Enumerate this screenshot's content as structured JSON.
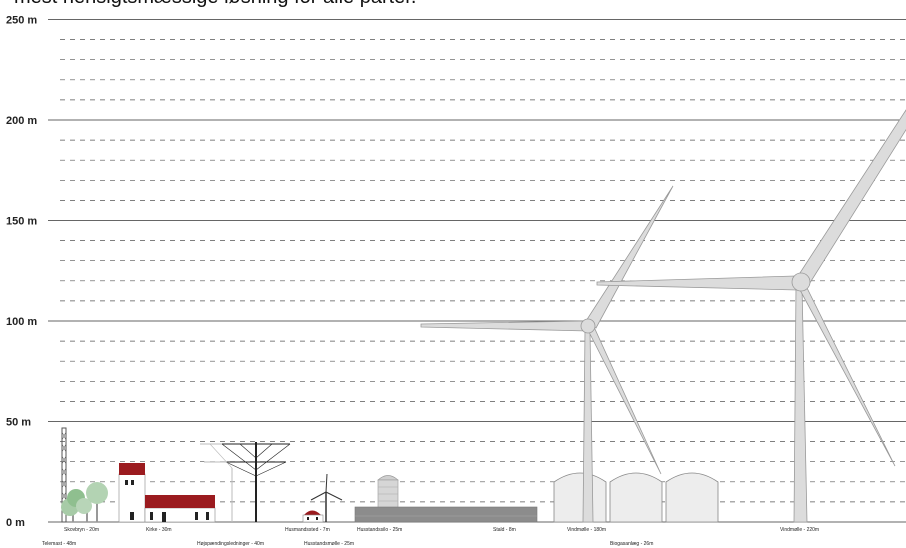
{
  "header": {
    "text": "mest hensigtsmæssige løsning for alle parter."
  },
  "axis": {
    "unit": "m",
    "max": 250,
    "major_ticks": [
      0,
      50,
      100,
      150,
      200,
      250
    ],
    "minor_step": 10,
    "labels": [
      "0 m",
      "50 m",
      "100 m",
      "150 m",
      "200 m",
      "250 m"
    ]
  },
  "objects": [
    {
      "key": "telemast",
      "caption": "Telemast - 48m",
      "height": 48
    },
    {
      "key": "skovbryn",
      "caption": "Skovbryn - 20m",
      "height": 20
    },
    {
      "key": "kirke",
      "caption": "Kirke - 30m",
      "height": 30
    },
    {
      "key": "hoejspaending",
      "caption": "Højspændingsledninger - 40m",
      "height": 40
    },
    {
      "key": "husmandssted",
      "caption": "Husmandssted - 7m",
      "height": 7
    },
    {
      "key": "husstandsmoelle",
      "caption": "Husstandsmølle - 25m",
      "height": 25
    },
    {
      "key": "husstandssilo",
      "caption": "Husstandssilo - 25m",
      "height": 25
    },
    {
      "key": "stald",
      "caption": "Stald - 8m",
      "height": 8
    },
    {
      "key": "vindmoelle-180",
      "caption": "Vindmølle - 180m",
      "height": 180
    },
    {
      "key": "biogasanlaeg",
      "caption": "Biogasanlæg - 26m",
      "height": 26
    },
    {
      "key": "vindmoelle-220",
      "caption": "Vindmølle - 220m",
      "height": 220
    }
  ],
  "colors": {
    "major_line": "#333333",
    "minor_line": "#555555",
    "turbine": "#dcdcdc",
    "turbine_stroke": "#9a9a9a",
    "roof_red": "#9b1b1f",
    "tree_green": "#8fbf8f",
    "stald_grey": "#8c8c8c"
  }
}
